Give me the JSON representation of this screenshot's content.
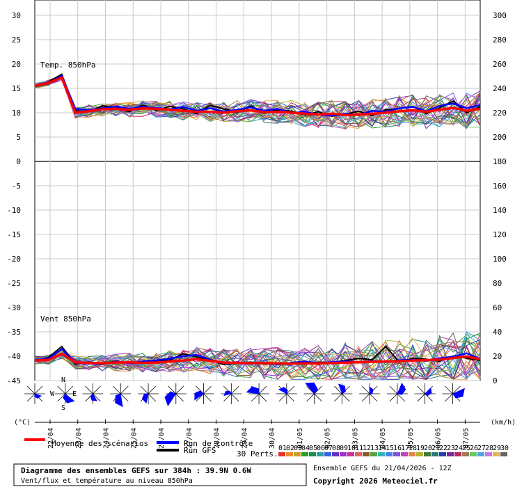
{
  "chart_data": {
    "type": "line",
    "left_axis": {
      "label": "(°C)",
      "ticks": [
        30,
        25,
        20,
        15,
        10,
        5,
        0,
        -5,
        -10,
        -15,
        -20,
        -25,
        -30,
        -35,
        -40,
        -45
      ],
      "ylim": [
        -45,
        30
      ]
    },
    "right_axis": {
      "label": "(km/h)",
      "ticks": [
        300,
        280,
        260,
        240,
        220,
        200,
        180,
        160,
        140,
        120,
        100,
        80,
        60,
        40,
        20,
        0
      ]
    },
    "x_labels": [
      "22/04",
      "23/04",
      "24/04",
      "25/04",
      "26/04",
      "27/04",
      "28/04",
      "29/04",
      "30/04",
      "01/05",
      "02/05",
      "03/05",
      "04/05",
      "05/05",
      "06/05",
      "07/05"
    ],
    "x_range_hours": [
      0,
      384
    ],
    "grid": true,
    "panels": [
      {
        "label": "Temp. 850hPa",
        "unit": "°C",
        "mean": [
          15.5,
          16.1,
          17.2,
          10.0,
          10.3,
          10.7,
          10.8,
          10.6,
          10.9,
          10.8,
          10.6,
          10.4,
          10.2,
          10.2,
          10.0,
          10.3,
          10.5,
          10.1,
          10.2,
          10.0,
          9.8,
          9.6,
          9.8,
          9.5,
          9.6,
          9.8,
          10.0,
          10.3,
          10.5,
          10.2,
          10.6,
          11.0,
          10.4,
          10.8
        ],
        "control": [
          15.6,
          16.0,
          17.6,
          10.8,
          10.5,
          10.9,
          11.3,
          10.8,
          11.2,
          11.0,
          10.7,
          11.2,
          10.4,
          10.9,
          10.2,
          10.6,
          11.1,
          10.4,
          10.8,
          9.9,
          10.2,
          9.6,
          9.4,
          9.8,
          9.5,
          10.4,
          10.2,
          10.9,
          11.2,
          10.3,
          11.4,
          11.9,
          10.9,
          11.6
        ],
        "gfs": [
          15.4,
          16.3,
          17.9,
          10.4,
          10.2,
          11.4,
          11.2,
          10.2,
          11.6,
          10.5,
          11.3,
          10.8,
          9.8,
          11.5,
          10.8,
          10.1,
          11.4,
          9.9,
          10.6,
          10.3,
          9.5,
          10.2,
          9.3,
          9.7,
          10.3,
          9.4,
          10.6,
          10.8,
          11.3,
          9.8,
          11.0,
          12.4,
          10.0,
          11.2
        ]
      },
      {
        "label": "Vent 850hPa",
        "unit": "km/h",
        "mean": [
          16.5,
          17.0,
          22.0,
          15.0,
          14.5,
          14.2,
          14.8,
          15.0,
          14.6,
          14.8,
          15.6,
          16.5,
          17.5,
          16.2,
          14.8,
          14.6,
          14.2,
          14.4,
          14.1,
          13.9,
          14.2,
          14.0,
          14.4,
          14.7,
          15.1,
          15.4,
          15.6,
          15.9,
          16.4,
          16.8,
          17.2,
          18.5,
          19.8,
          17.5
        ],
        "control": [
          17.0,
          18.0,
          26.0,
          14.5,
          14.0,
          13.8,
          15.5,
          14.2,
          15.8,
          16.5,
          18.0,
          20.0,
          21.0,
          17.2,
          14.0,
          15.2,
          13.6,
          14.8,
          13.2,
          14.6,
          15.8,
          14.3,
          15.1,
          15.8,
          14.9,
          16.2,
          15.1,
          16.8,
          17.0,
          16.2,
          18.4,
          19.6,
          22.4,
          17.8
        ],
        "gfs": [
          16.0,
          19.0,
          28.0,
          13.6,
          15.2,
          13.4,
          16.1,
          14.1,
          14.9,
          15.9,
          16.8,
          22.0,
          19.4,
          16.8,
          13.3,
          14.3,
          15.2,
          13.5,
          14.6,
          14.2,
          13.6,
          15.0,
          14.8,
          16.4,
          18.2,
          17.1,
          28.0,
          15.3,
          18.2,
          17.6,
          15.9,
          20.2,
          18.4,
          16.5
        ]
      }
    ],
    "wind_roses": 16,
    "rose_labels": {
      "n": "N",
      "s": "S",
      "e": "E",
      "w": "W"
    },
    "legend": {
      "mean": "Moyenne des scénarios",
      "control": "Run de contrôle",
      "gfs": "Run GFS",
      "perts_label": "30 Perts.",
      "perts": [
        "01",
        "02",
        "03",
        "04",
        "05",
        "06",
        "07",
        "08",
        "09",
        "10",
        "11",
        "12",
        "13",
        "14",
        "15",
        "16",
        "17",
        "18",
        "19",
        "20",
        "21",
        "22",
        "23",
        "24",
        "25",
        "26",
        "27",
        "28",
        "29",
        "30"
      ],
      "pert_colors": [
        "#e63232",
        "#f08c28",
        "#c8a028",
        "#28a028",
        "#1e8c50",
        "#28a0a0",
        "#3264dc",
        "#6432c8",
        "#a032c8",
        "#c83296",
        "#dc6464",
        "#8c5a28",
        "#5aa03c",
        "#32b4b4",
        "#4682e6",
        "#8250dc",
        "#be46be",
        "#e68250",
        "#b4b428",
        "#3c783c",
        "#287878",
        "#283cb4",
        "#782896",
        "#b42864",
        "#a07850",
        "#64c864",
        "#50a0e6",
        "#c878e6",
        "#e6b450",
        "#646464"
      ]
    },
    "title": "Diagramme des ensembles GEFS sur 384h : 39.9N 0.6W",
    "subtitle": "Vent/flux et température au niveau 850hPa",
    "run_info": "Ensemble GEFS du 21/04/2026 - 12Z",
    "copyright": "Copyright 2026 Meteociel.fr"
  }
}
